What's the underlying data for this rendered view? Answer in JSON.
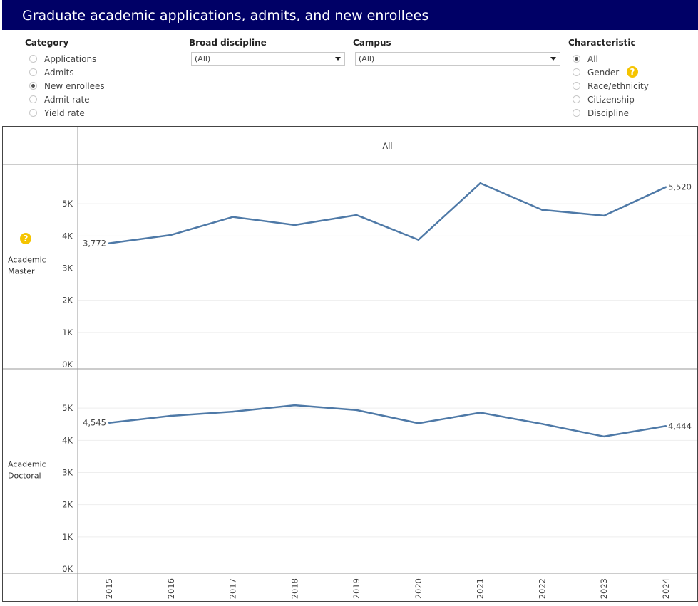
{
  "title": "Graduate academic applications, admits, and new enrollees",
  "filters": {
    "category": {
      "label": "Category",
      "options": [
        "Applications",
        "Admits",
        "New enrollees",
        "Admit rate",
        "Yield rate"
      ],
      "selected": "New enrollees"
    },
    "broad_discipline": {
      "label": "Broad discipline",
      "value": "(All)"
    },
    "campus": {
      "label": "Campus",
      "value": "(All)"
    },
    "characteristic": {
      "label": "Characteristic",
      "options": [
        "All",
        "Gender",
        "Race/ethnicity",
        "Citizenship",
        "Discipline"
      ],
      "selected": "All"
    }
  },
  "help_icon": "?",
  "colors": {
    "line": "#4e79a7",
    "header": "#000066",
    "help": "#f5c400"
  },
  "chart_data": {
    "type": "line",
    "column_header": "All",
    "categories": [
      "2015",
      "2016",
      "2017",
      "2018",
      "2019",
      "2020",
      "2021",
      "2022",
      "2023",
      "2024"
    ],
    "y_ticks": [
      "0K",
      "1K",
      "2K",
      "3K",
      "4K",
      "5K"
    ],
    "ylim": [
      0,
      6000
    ],
    "series": [
      {
        "name": "Academic Master",
        "row_label": [
          "Academic",
          "Master"
        ],
        "values": [
          3772,
          4030,
          4590,
          4340,
          4650,
          3880,
          5640,
          4810,
          4630,
          5520
        ],
        "first_label": "3,772",
        "last_label": "5,520"
      },
      {
        "name": "Academic Doctoral",
        "row_label": [
          "Academic",
          "Doctoral"
        ],
        "values": [
          4545,
          4760,
          4890,
          5090,
          4940,
          4530,
          4860,
          4510,
          4120,
          4444
        ],
        "first_label": "4,545",
        "last_label": "4,444"
      }
    ]
  }
}
